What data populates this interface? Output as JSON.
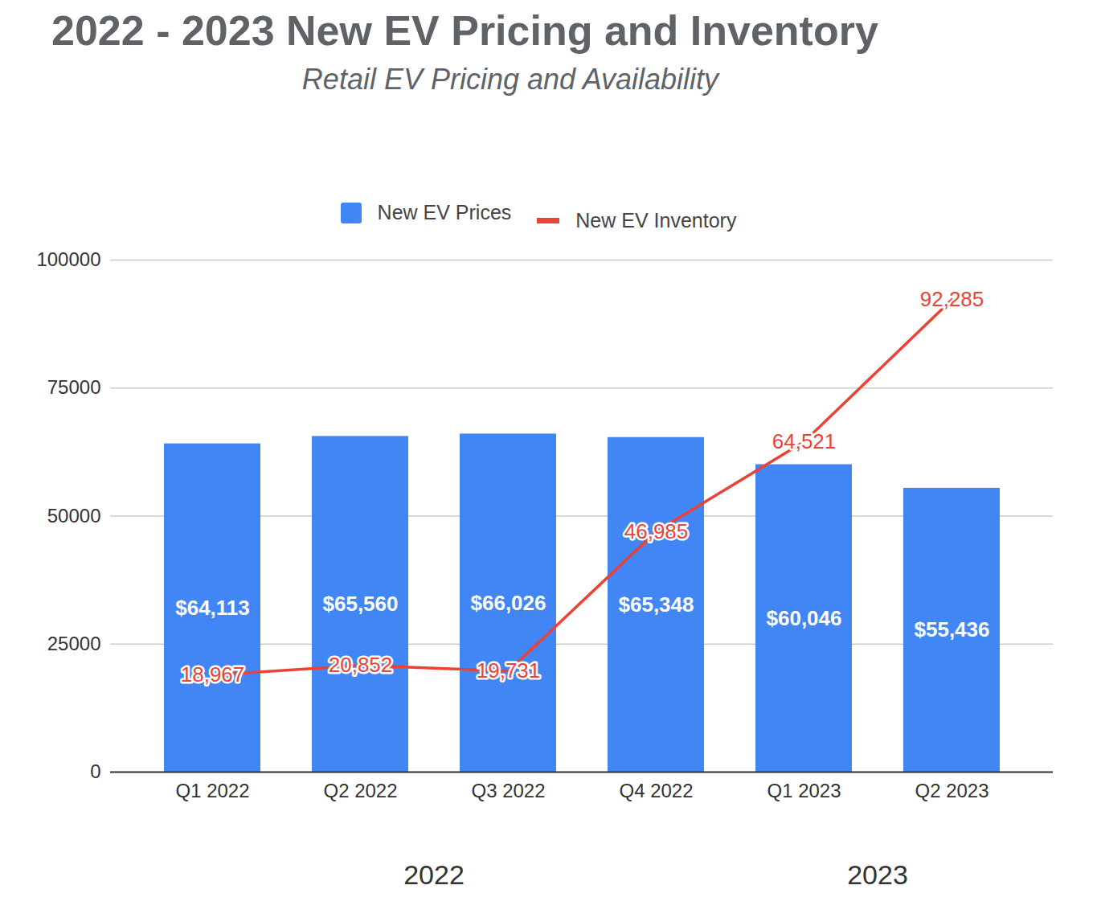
{
  "chart_data": {
    "type": "bar",
    "title": "2022 - 2023 New EV Pricing and Inventory",
    "subtitle": "Retail EV Pricing and Availability",
    "categories": [
      "Q1 2022",
      "Q2 2022",
      "Q3 2022",
      "Q4 2022",
      "Q1 2023",
      "Q2 2023"
    ],
    "x_groups": [
      {
        "label": "2022",
        "count": 4
      },
      {
        "label": "2023",
        "count": 2
      }
    ],
    "series": [
      {
        "name": "New EV Prices",
        "type": "bar",
        "color": "#4285f4",
        "values": [
          64113,
          65560,
          66026,
          65348,
          60046,
          55436
        ],
        "value_labels": [
          "$64,113",
          "$65,560",
          "$66,026",
          "$65,348",
          "$60,046",
          "$55,436"
        ]
      },
      {
        "name": "New EV Inventory",
        "type": "line",
        "color": "#ea4335",
        "values": [
          18967,
          20852,
          19731,
          46985,
          64521,
          92285
        ],
        "value_labels": [
          "18,967",
          "20,852",
          "19,731",
          "46,985",
          "64,521",
          "92,285"
        ]
      }
    ],
    "ylim": [
      0,
      100000
    ],
    "yticks": [
      0,
      25000,
      50000,
      75000,
      100000
    ],
    "grid": true,
    "legend": "top",
    "data_labels": true
  }
}
